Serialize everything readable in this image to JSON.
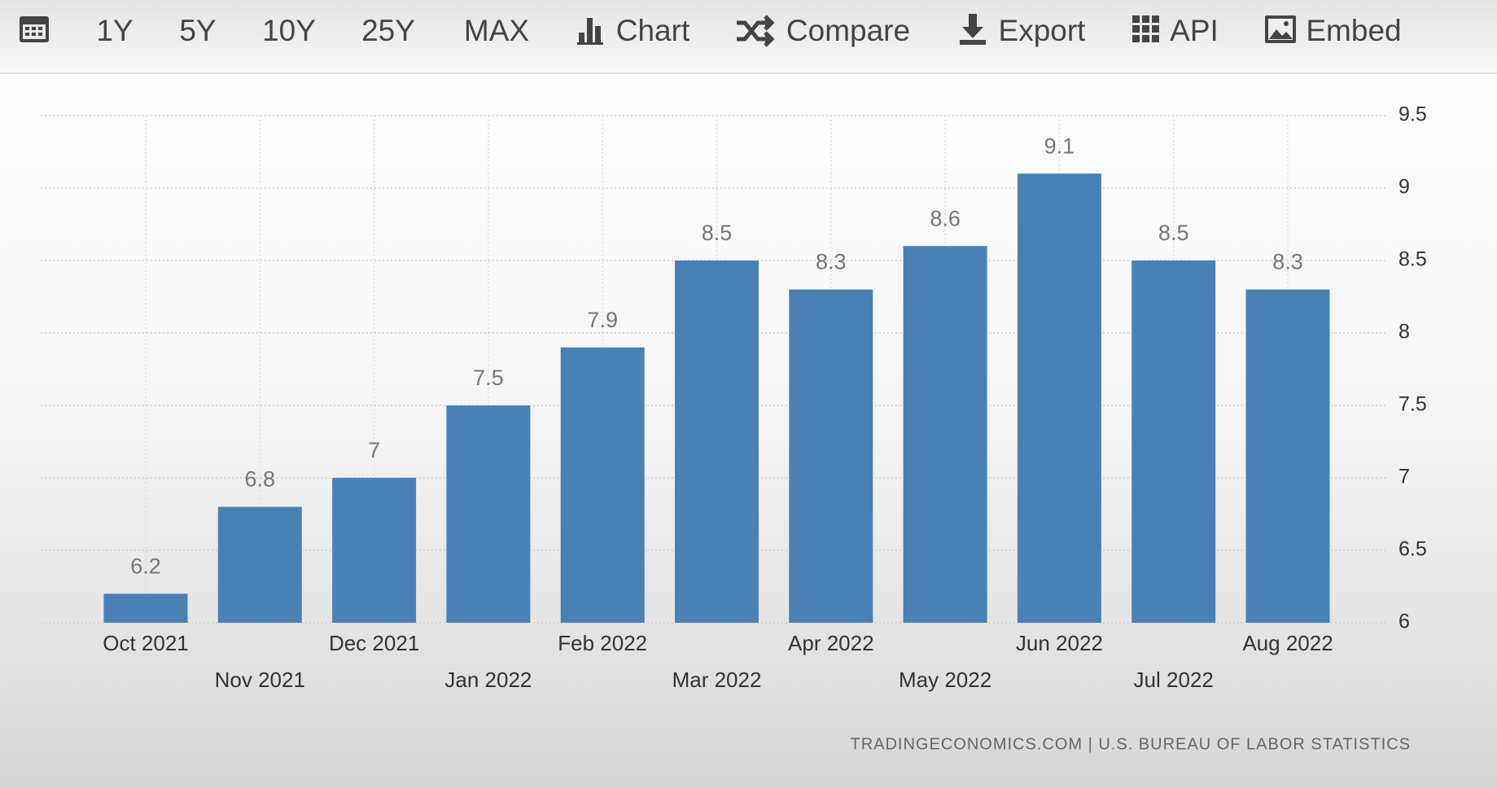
{
  "toolbar": {
    "buttons": [
      "1Y",
      "5Y",
      "10Y",
      "25Y",
      "MAX",
      "Chart",
      "Compare",
      "Export",
      "API",
      "Embed"
    ]
  },
  "chart_data": {
    "type": "bar",
    "categories": [
      "Oct 2021",
      "Nov 2021",
      "Dec 2021",
      "Jan 2022",
      "Feb 2022",
      "Mar 2022",
      "Apr 2022",
      "May 2022",
      "Jun 2022",
      "Jul 2022",
      "Aug 2022"
    ],
    "values": [
      6.2,
      6.8,
      7,
      7.5,
      7.9,
      8.5,
      8.3,
      8.6,
      9.1,
      8.5,
      8.3
    ],
    "color": "#4a81b4",
    "ylim": [
      6,
      9.5
    ],
    "yticks": [
      6,
      6.5,
      7,
      7.5,
      8,
      8.5,
      9,
      9.5
    ],
    "grid": true,
    "source": "TRADINGECONOMICS.COM | U.S. BUREAU OF LABOR STATISTICS"
  }
}
